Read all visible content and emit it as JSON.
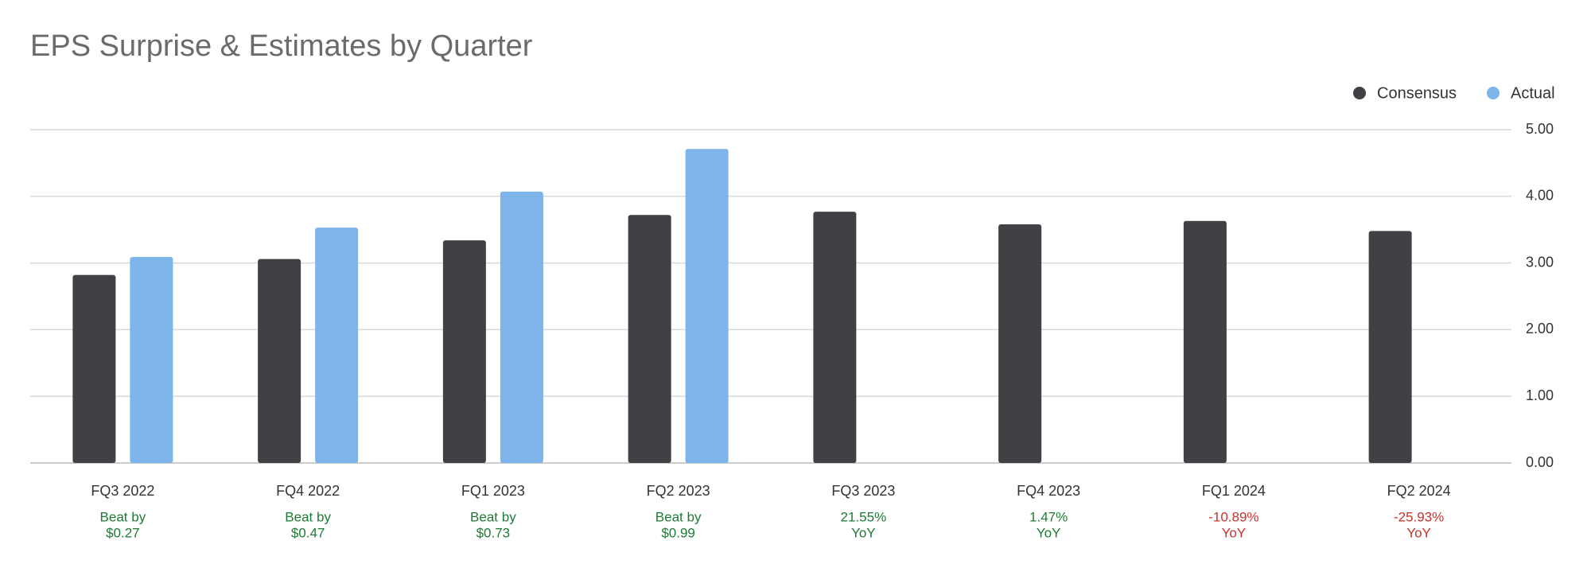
{
  "chart_data": {
    "type": "bar",
    "title": "EPS Surprise & Estimates by Quarter",
    "categories": [
      "FQ3 2022",
      "FQ4 2022",
      "FQ1 2023",
      "FQ2 2023",
      "FQ3 2023",
      "FQ4 2023",
      "FQ1 2024",
      "FQ2 2024"
    ],
    "series": [
      {
        "name": "Consensus",
        "color": "#414045",
        "values": [
          2.82,
          3.06,
          3.34,
          3.72,
          3.77,
          3.58,
          3.63,
          3.48
        ]
      },
      {
        "name": "Actual",
        "color": "#7db4ea",
        "values": [
          3.09,
          3.53,
          4.07,
          4.71,
          null,
          null,
          null,
          null
        ]
      }
    ],
    "surprise_labels": [
      {
        "lines": [
          "Beat by",
          "$0.27"
        ],
        "color": "#1e7b34"
      },
      {
        "lines": [
          "Beat by",
          "$0.47"
        ],
        "color": "#1e7b34"
      },
      {
        "lines": [
          "Beat by",
          "$0.73"
        ],
        "color": "#1e7b34"
      },
      {
        "lines": [
          "Beat by",
          "$0.99"
        ],
        "color": "#1e7b34"
      },
      {
        "lines": [
          "21.55%",
          "YoY"
        ],
        "color": "#1e7b34"
      },
      {
        "lines": [
          "1.47%",
          "YoY"
        ],
        "color": "#1e7b34"
      },
      {
        "lines": [
          "-10.89%",
          "YoY"
        ],
        "color": "#c8332b"
      },
      {
        "lines": [
          "-25.93%",
          "YoY"
        ],
        "color": "#c8332b"
      }
    ],
    "ylim": [
      0,
      5
    ],
    "yticks": [
      {
        "value": 0,
        "label": "0.00"
      },
      {
        "value": 1,
        "label": "1.00"
      },
      {
        "value": 2,
        "label": "2.00"
      },
      {
        "value": 3,
        "label": "3.00"
      },
      {
        "value": 4,
        "label": "4.00"
      },
      {
        "value": 5,
        "label": "5.00"
      }
    ],
    "grid": true,
    "legend": "top-right"
  }
}
